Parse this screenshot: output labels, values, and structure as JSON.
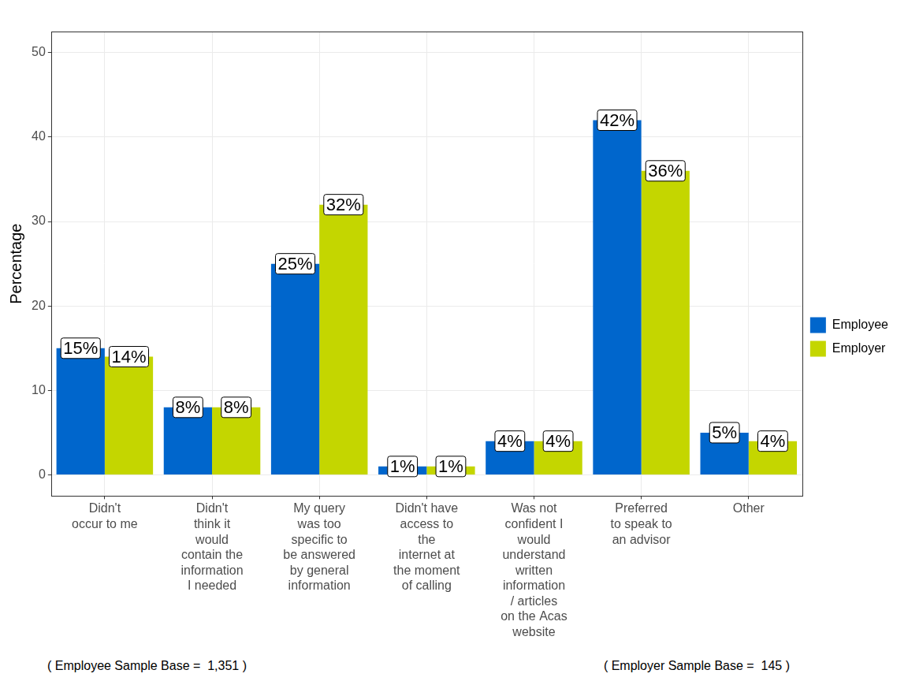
{
  "chart_data": {
    "type": "bar",
    "ylabel": "Percentage",
    "categories": [
      [
        "Didn't",
        "occur to me"
      ],
      [
        "Didn't",
        "think it",
        "would",
        "contain the",
        "information",
        "I needed"
      ],
      [
        "My query",
        "was too",
        "specific to",
        "be answered",
        "by general",
        "information"
      ],
      [
        "Didn't have",
        "access to",
        "the",
        "internet at",
        "the moment",
        "of calling"
      ],
      [
        "Was not",
        "confident I",
        "would",
        "understand",
        "written",
        "information",
        "/ articles",
        "on the Acas",
        "website"
      ],
      [
        "Preferred",
        "to speak to",
        "an advisor"
      ],
      [
        "Other"
      ]
    ],
    "series": [
      {
        "name": "Employee",
        "color": "#0066cc",
        "values": [
          15,
          8,
          25,
          1,
          4,
          42,
          5
        ],
        "value_labels": [
          "15%",
          "8%",
          "25%",
          "1%",
          "4%",
          "42%",
          "5%"
        ]
      },
      {
        "name": "Employer",
        "color": "#c4d600",
        "values": [
          14,
          8,
          32,
          1,
          4,
          36,
          4
        ],
        "value_labels": [
          "14%",
          "8%",
          "32%",
          "1%",
          "4%",
          "36%",
          "4%"
        ]
      }
    ],
    "ylim": [
      -2.5,
      52.5
    ],
    "yticks": [
      0,
      10,
      20,
      30,
      40,
      50
    ],
    "grid": true,
    "legend": "right",
    "data_labels": true,
    "annotations": [
      "( Employee Sample Base =  1,351 )",
      "( Employer Sample Base =  145 )"
    ]
  }
}
